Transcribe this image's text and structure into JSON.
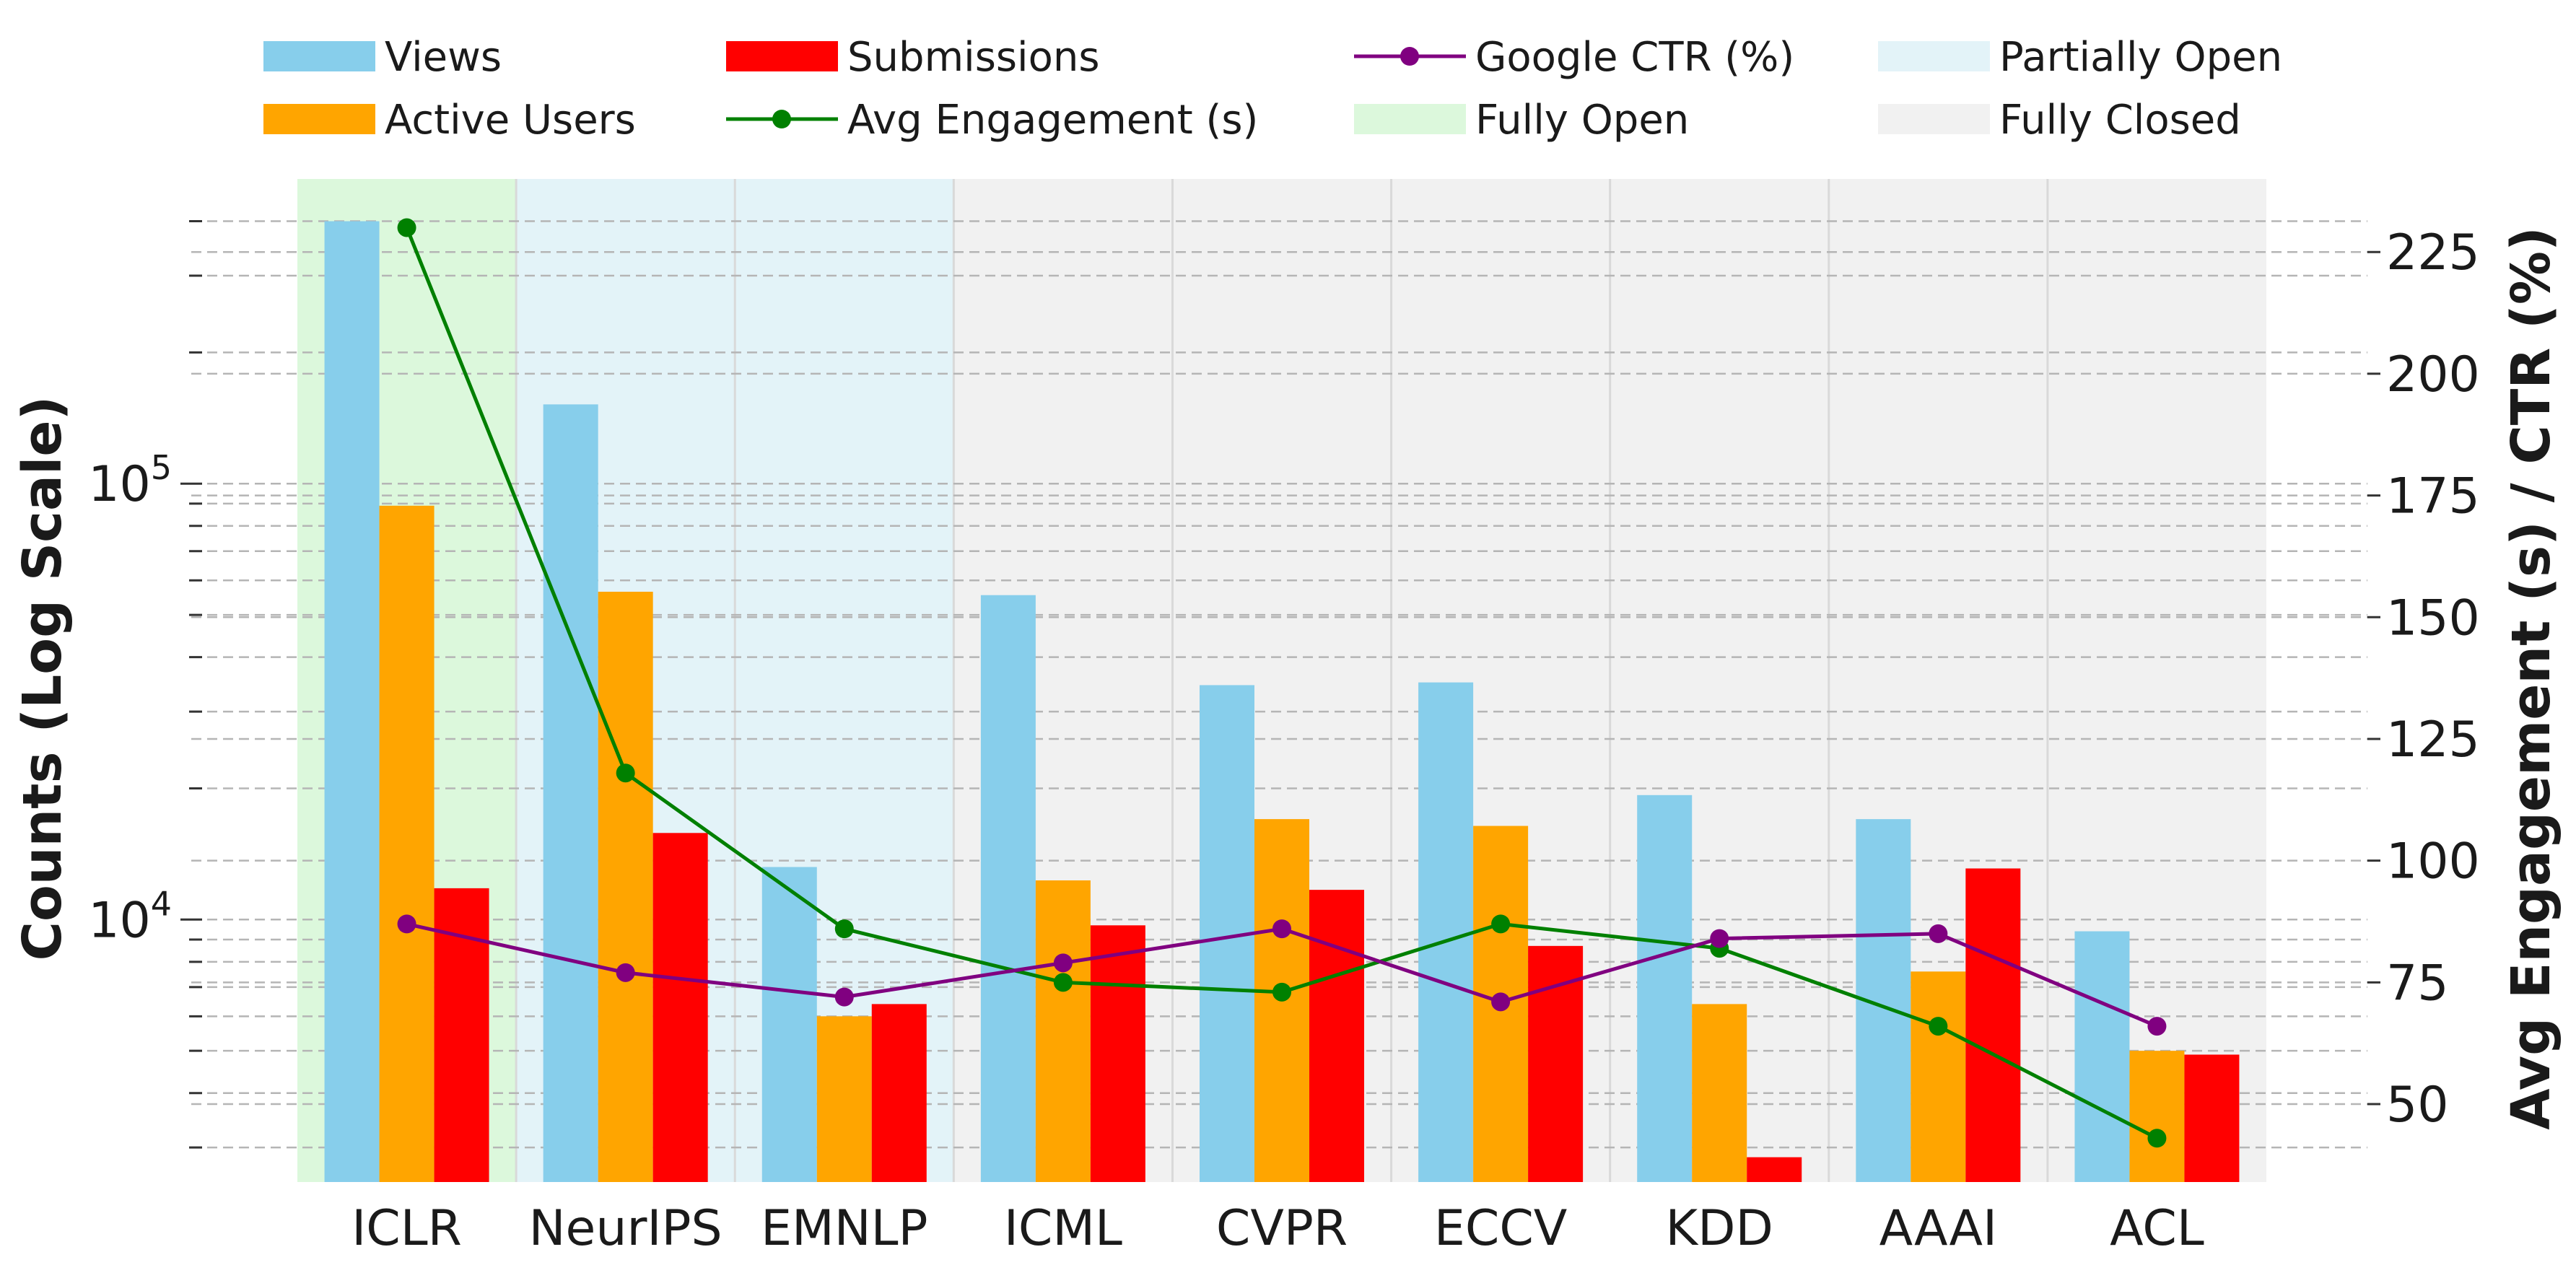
{
  "chart_data": {
    "type": "bar",
    "categories": [
      "ICLR",
      "NeurIPS",
      "EMNLP",
      "ICML",
      "CVPR",
      "ECCV",
      "KDD",
      "AAAI",
      "ACL"
    ],
    "series": [
      {
        "name": "Views",
        "axis": "left",
        "kind": "bar",
        "color": "#87CEEB",
        "values": [
          400000,
          152000,
          13200,
          55500,
          34500,
          35000,
          19300,
          17000,
          9400
        ]
      },
      {
        "name": "Active Users",
        "axis": "left",
        "kind": "bar",
        "color": "#FFA500",
        "values": [
          89000,
          56500,
          6000,
          12300,
          17000,
          16400,
          6400,
          7600,
          5000
        ]
      },
      {
        "name": "Submissions",
        "axis": "left",
        "kind": "bar",
        "color": "#FF0000",
        "values": [
          11800,
          15800,
          6400,
          9700,
          11700,
          8700,
          2850,
          13100,
          4900
        ]
      },
      {
        "name": "Avg Engagement (s)",
        "axis": "right",
        "kind": "line",
        "color": "#008000",
        "values": [
          230,
          118,
          86,
          75,
          73,
          87,
          82,
          66,
          43
        ]
      },
      {
        "name": "Google CTR (%)",
        "axis": "right",
        "kind": "line",
        "color": "#800080",
        "values": [
          87,
          77,
          72,
          79,
          86,
          71,
          84,
          85,
          66
        ]
      }
    ],
    "regions": [
      {
        "name": "Fully Open",
        "categories": [
          "ICLR"
        ],
        "color": "#dcf8dc"
      },
      {
        "name": "Partially Open",
        "categories": [
          "NeurIPS",
          "EMNLP"
        ],
        "color": "#e3f3f8"
      },
      {
        "name": "Fully Closed",
        "categories": [
          "ICML",
          "CVPR",
          "ECCV",
          "KDD",
          "AAAI",
          "ACL"
        ],
        "color": "#f1f1f1"
      }
    ],
    "legend": {
      "placement": "top",
      "entries": [
        {
          "label": "Views",
          "kind": "patch",
          "color": "#87CEEB"
        },
        {
          "label": "Active Users",
          "kind": "patch",
          "color": "#FFA500"
        },
        {
          "label": "Submissions",
          "kind": "patch",
          "color": "#FF0000"
        },
        {
          "label": "Avg Engagement (s)",
          "kind": "line",
          "color": "#008000"
        },
        {
          "label": "Google CTR (%)",
          "kind": "line",
          "color": "#800080"
        },
        {
          "label": "Fully Open",
          "kind": "patch",
          "color": "#dcf8dc"
        },
        {
          "label": "Partially Open",
          "kind": "patch",
          "color": "#e3f3f8"
        },
        {
          "label": "Fully Closed",
          "kind": "patch",
          "color": "#f1f1f1"
        }
      ]
    },
    "left_axis": {
      "label": "Counts (Log Scale)",
      "scale": "log",
      "ylim": [
        2500,
        500000
      ],
      "ticks": [
        {
          "value": 10000,
          "base": "10",
          "exp": "4"
        },
        {
          "value": 100000,
          "base": "10",
          "exp": "5"
        }
      ]
    },
    "right_axis": {
      "label": "Avg Engagement (s) / CTR (%)",
      "scale": "linear",
      "ylim": [
        34,
        240
      ],
      "ticks": [
        50,
        75,
        100,
        125,
        150,
        175,
        200,
        225
      ]
    },
    "grid": {
      "horizontal": true,
      "style": "dashed",
      "vertical_category_lines": true
    }
  }
}
